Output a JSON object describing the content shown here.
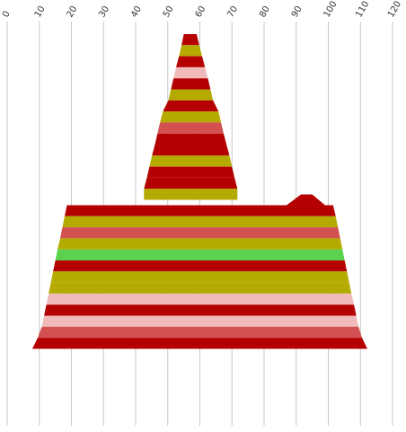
{
  "colors": {
    "red": "#b40000",
    "olive": "#b4aa00",
    "salmon": "#d25050",
    "pink": "#f0baba",
    "green": "#5ad250",
    "gridline": "#c8c8c8"
  },
  "chart_data": {
    "type": "funnel",
    "title": "",
    "xlabel": "",
    "ylabel": "",
    "x_range": [
      0,
      120
    ],
    "x_ticks": [
      "0",
      "10",
      "20",
      "30",
      "40",
      "50",
      "60",
      "70",
      "80",
      "90",
      "100",
      "110",
      "120"
    ],
    "grid": true,
    "bands": [
      {
        "left": 55.0,
        "right": 59.0,
        "color": "red"
      },
      {
        "left": 54.3,
        "right": 59.8,
        "color": "olive"
      },
      {
        "left": 53.5,
        "right": 60.7,
        "color": "red"
      },
      {
        "left": 52.6,
        "right": 61.6,
        "color": "pink"
      },
      {
        "left": 51.8,
        "right": 62.5,
        "color": "red"
      },
      {
        "left": 51.0,
        "right": 63.3,
        "color": "olive"
      },
      {
        "left": 50.2,
        "right": 64.1,
        "color": "red"
      },
      {
        "left": 48.5,
        "right": 65.8,
        "color": "olive"
      },
      {
        "left": 47.6,
        "right": 66.6,
        "color": "salmon"
      },
      {
        "left": 46.8,
        "right": 67.4,
        "color": "red"
      },
      {
        "left": 46.0,
        "right": 68.3,
        "color": "red"
      },
      {
        "left": 45.1,
        "right": 69.2,
        "color": "olive"
      },
      {
        "left": 44.3,
        "right": 70.0,
        "color": "red"
      },
      {
        "left": 43.5,
        "right": 70.8,
        "color": "red"
      },
      {
        "left": 42.6,
        "right": 71.7,
        "color": "olive"
      },
      {
        "left": 18.6,
        "right": 101.5,
        "color": "red"
      },
      {
        "left": 17.9,
        "right": 102.3,
        "color": "olive"
      },
      {
        "left": 17.2,
        "right": 103.0,
        "color": "salmon"
      },
      {
        "left": 16.5,
        "right": 103.7,
        "color": "olive"
      },
      {
        "left": 15.7,
        "right": 104.4,
        "color": "green"
      },
      {
        "left": 15.0,
        "right": 105.1,
        "color": "red"
      },
      {
        "left": 14.3,
        "right": 105.8,
        "color": "olive"
      },
      {
        "left": 13.6,
        "right": 106.5,
        "color": "olive"
      },
      {
        "left": 12.9,
        "right": 107.2,
        "color": "pink"
      },
      {
        "left": 12.2,
        "right": 108.0,
        "color": "red"
      },
      {
        "left": 11.5,
        "right": 108.7,
        "color": "pink"
      },
      {
        "left": 10.8,
        "right": 109.4,
        "color": "salmon"
      },
      {
        "left": 9.5,
        "right": 110.5,
        "color": "red"
      }
    ]
  }
}
